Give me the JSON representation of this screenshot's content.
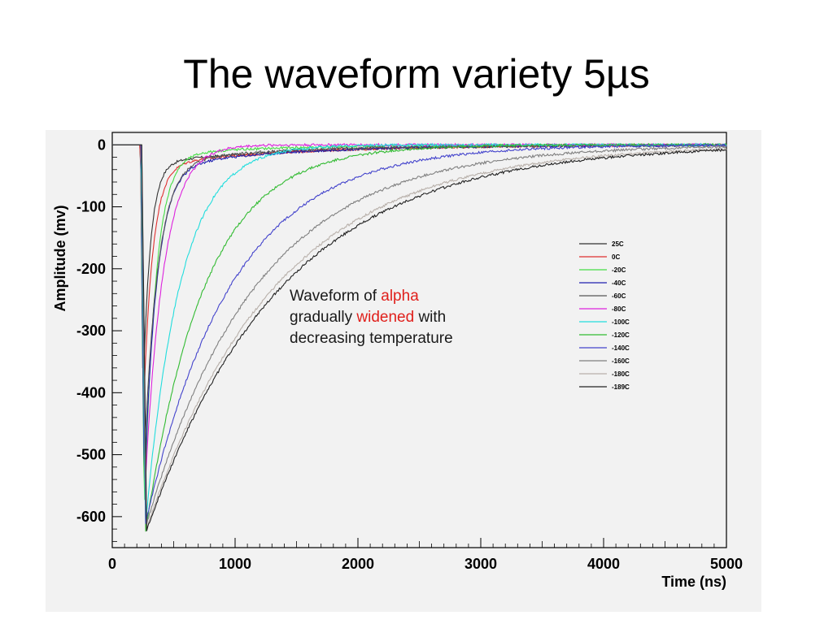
{
  "slide": {
    "title": "The waveform variety 5µs"
  },
  "annotation": {
    "p1": "Waveform of ",
    "p2": "alpha",
    "p3": "gradually ",
    "p4": "widened",
    "p5": " with",
    "p6": "decreasing temperature"
  },
  "colors": {
    "highlight": "#e0201c",
    "plot_bg": "#f2f2f2"
  },
  "chart_data": {
    "type": "line",
    "title": "",
    "xlabel": "Time (ns)",
    "ylabel": "Amplitude (mv)",
    "xlim": [
      0,
      5000
    ],
    "ylim": [
      -650,
      20
    ],
    "x_ticks": [
      0,
      1000,
      2000,
      3000,
      4000,
      5000
    ],
    "y_ticks": [
      0,
      -100,
      -200,
      -300,
      -400,
      -500,
      -600
    ],
    "legend_position": "right",
    "grid": false,
    "series": [
      {
        "name": "25C",
        "color": "#333333",
        "onset": 230,
        "min_time": 250,
        "min_value": -400,
        "decay_ns": 60,
        "plateau": -30,
        "plateau_decay_ns": 1200
      },
      {
        "name": "0C",
        "color": "#e03030",
        "onset": 230,
        "min_time": 255,
        "min_value": -420,
        "decay_ns": 75,
        "plateau": -35,
        "plateau_decay_ns": 1100
      },
      {
        "name": "-20C",
        "color": "#44dd44",
        "onset": 232,
        "min_time": 260,
        "min_value": -600,
        "decay_ns": 90,
        "plateau": -18,
        "plateau_decay_ns": 900
      },
      {
        "name": "-40C",
        "color": "#2020b0",
        "onset": 232,
        "min_time": 260,
        "min_value": -560,
        "decay_ns": 100,
        "plateau": -40,
        "plateau_decay_ns": 1000
      },
      {
        "name": "-60C",
        "color": "#555555",
        "onset": 232,
        "min_time": 262,
        "min_value": -500,
        "decay_ns": 110,
        "plateau": -30,
        "plateau_decay_ns": 1000
      },
      {
        "name": "-80C",
        "color": "#dd22dd",
        "onset": 235,
        "min_time": 265,
        "min_value": -560,
        "decay_ns": 150,
        "plateau": 0,
        "plateau_decay_ns": 1000
      },
      {
        "name": "-100C",
        "color": "#22dddd",
        "onset": 235,
        "min_time": 268,
        "min_value": -620,
        "decay_ns": 280,
        "plateau": 0,
        "plateau_decay_ns": 1000
      },
      {
        "name": "-120C",
        "color": "#33bb33",
        "onset": 238,
        "min_time": 270,
        "min_value": -625,
        "decay_ns": 480,
        "plateau": 0,
        "plateau_decay_ns": 1000
      },
      {
        "name": "-140C",
        "color": "#4444cc",
        "onset": 238,
        "min_time": 272,
        "min_value": -610,
        "decay_ns": 700,
        "plateau": 0,
        "plateau_decay_ns": 1000
      },
      {
        "name": "-160C",
        "color": "#808080",
        "onset": 240,
        "min_time": 275,
        "min_value": -615,
        "decay_ns": 900,
        "plateau": 0,
        "plateau_decay_ns": 1000
      },
      {
        "name": "-180C",
        "color": "#b8b0aa",
        "onset": 240,
        "min_time": 278,
        "min_value": -620,
        "decay_ns": 1050,
        "plateau": 0,
        "plateau_decay_ns": 1000
      },
      {
        "name": "-189C",
        "color": "#222222",
        "onset": 240,
        "min_time": 280,
        "min_value": -622,
        "decay_ns": 1100,
        "plateau": 0,
        "plateau_decay_ns": 1000
      }
    ]
  }
}
